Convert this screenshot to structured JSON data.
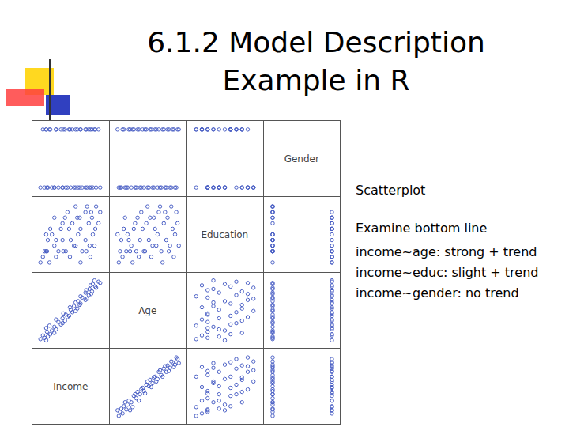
{
  "title": [
    "6.1.2 Model Description",
    "Example in R"
  ],
  "notes": [
    "Scatterplot",
    "Examine bottom line",
    "income~age: strong + trend",
    "income~educ: slight + trend",
    "income~gender: no trend"
  ],
  "chart_data": {
    "type": "scatter",
    "color": "#4a5fc4",
    "marker": "circle",
    "grid": false,
    "tick_labels": false,
    "variables": [
      {
        "name": "Income",
        "lim": [
          28,
          112
        ],
        "values": [
          38,
          45,
          41,
          52,
          50,
          58,
          55,
          63,
          60,
          68,
          64,
          72,
          70,
          78,
          74,
          82,
          79,
          88,
          84,
          92,
          88,
          96,
          93,
          100,
          97,
          36,
          47,
          44,
          60,
          52,
          66,
          61,
          76,
          69,
          81,
          76,
          90,
          82,
          95,
          89,
          101,
          94,
          42,
          40,
          50,
          104,
          33,
          99,
          106,
          40
        ]
      },
      {
        "name": "Age",
        "lim": [
          17,
          72
        ],
        "values": [
          22,
          25,
          27,
          29,
          31,
          33,
          35,
          36,
          38,
          40,
          41,
          43,
          45,
          46,
          48,
          50,
          52,
          53,
          55,
          57,
          59,
          60,
          62,
          64,
          66,
          24,
          28,
          32,
          34,
          37,
          39,
          42,
          44,
          47,
          49,
          51,
          54,
          56,
          58,
          61,
          63,
          65,
          23,
          30,
          26,
          68,
          21,
          69,
          67,
          20
        ]
      },
      {
        "name": "Education",
        "lim": [
          9,
          21
        ],
        "values": [
          12,
          16,
          12,
          14,
          13,
          16,
          12,
          18,
          14,
          16,
          12,
          17,
          14,
          18,
          13,
          16,
          15,
          19,
          12,
          17,
          14,
          18,
          13,
          16,
          15,
          11,
          15,
          10,
          17,
          11,
          19,
          12,
          20,
          11,
          18,
          13,
          20,
          10,
          19,
          12,
          20,
          11,
          14,
          12,
          18,
          17,
          10,
          13,
          19,
          15
        ]
      },
      {
        "name": "Gender",
        "lim": [
          -0.08,
          1.08
        ],
        "values": [
          0,
          1,
          0,
          1,
          0,
          1,
          0,
          1,
          0,
          1,
          0,
          1,
          0,
          1,
          0,
          1,
          0,
          1,
          0,
          1,
          0,
          1,
          0,
          1,
          0,
          1,
          0,
          1,
          0,
          1,
          0,
          1,
          0,
          1,
          0,
          1,
          0,
          1,
          0,
          1,
          0,
          1,
          0,
          1,
          0,
          1,
          0,
          1,
          0,
          1
        ]
      }
    ]
  }
}
